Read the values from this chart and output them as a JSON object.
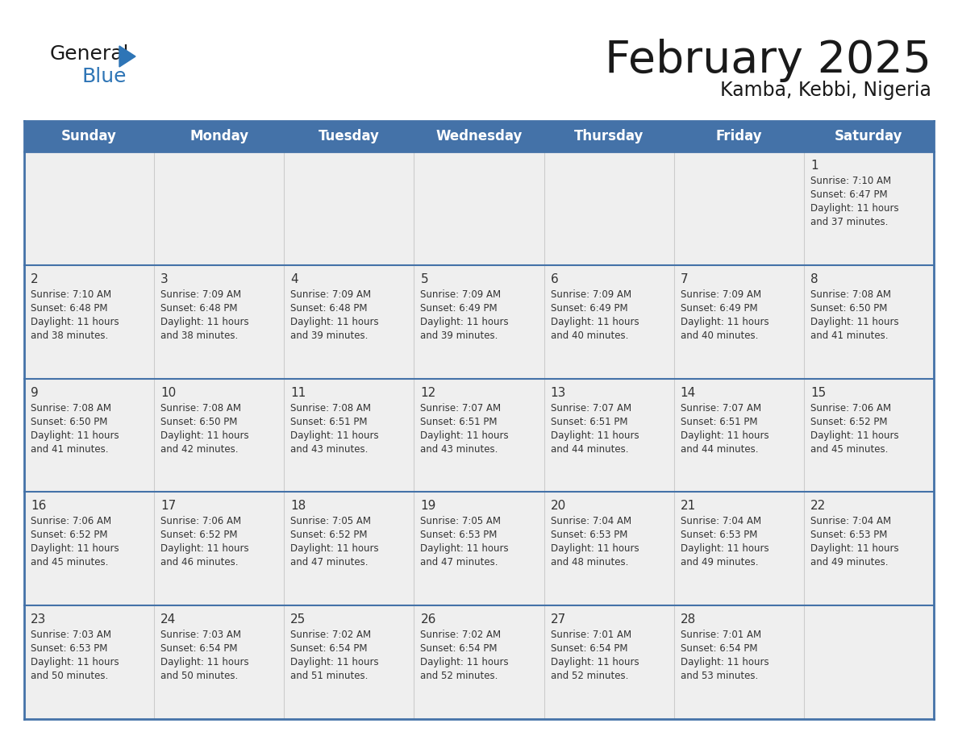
{
  "title": "February 2025",
  "subtitle": "Kamba, Kebbi, Nigeria",
  "header_bg_color": "#4472a8",
  "header_text_color": "#ffffff",
  "cell_bg_color": "#efefef",
  "border_color": "#4472a8",
  "day_text_color": "#333333",
  "info_text_color": "#333333",
  "days_of_week": [
    "Sunday",
    "Monday",
    "Tuesday",
    "Wednesday",
    "Thursday",
    "Friday",
    "Saturday"
  ],
  "logo_general_color": "#1a1a1a",
  "logo_blue_color": "#2e75b6",
  "logo_triangle_color": "#2e75b6",
  "calendar_data": [
    [
      null,
      null,
      null,
      null,
      null,
      null,
      {
        "day": 1,
        "sunrise": "7:10 AM",
        "sunset": "6:47 PM",
        "daylight": "11 hours and 37 minutes."
      }
    ],
    [
      {
        "day": 2,
        "sunrise": "7:10 AM",
        "sunset": "6:48 PM",
        "daylight": "11 hours and 38 minutes."
      },
      {
        "day": 3,
        "sunrise": "7:09 AM",
        "sunset": "6:48 PM",
        "daylight": "11 hours and 38 minutes."
      },
      {
        "day": 4,
        "sunrise": "7:09 AM",
        "sunset": "6:48 PM",
        "daylight": "11 hours and 39 minutes."
      },
      {
        "day": 5,
        "sunrise": "7:09 AM",
        "sunset": "6:49 PM",
        "daylight": "11 hours and 39 minutes."
      },
      {
        "day": 6,
        "sunrise": "7:09 AM",
        "sunset": "6:49 PM",
        "daylight": "11 hours and 40 minutes."
      },
      {
        "day": 7,
        "sunrise": "7:09 AM",
        "sunset": "6:49 PM",
        "daylight": "11 hours and 40 minutes."
      },
      {
        "day": 8,
        "sunrise": "7:08 AM",
        "sunset": "6:50 PM",
        "daylight": "11 hours and 41 minutes."
      }
    ],
    [
      {
        "day": 9,
        "sunrise": "7:08 AM",
        "sunset": "6:50 PM",
        "daylight": "11 hours and 41 minutes."
      },
      {
        "day": 10,
        "sunrise": "7:08 AM",
        "sunset": "6:50 PM",
        "daylight": "11 hours and 42 minutes."
      },
      {
        "day": 11,
        "sunrise": "7:08 AM",
        "sunset": "6:51 PM",
        "daylight": "11 hours and 43 minutes."
      },
      {
        "day": 12,
        "sunrise": "7:07 AM",
        "sunset": "6:51 PM",
        "daylight": "11 hours and 43 minutes."
      },
      {
        "day": 13,
        "sunrise": "7:07 AM",
        "sunset": "6:51 PM",
        "daylight": "11 hours and 44 minutes."
      },
      {
        "day": 14,
        "sunrise": "7:07 AM",
        "sunset": "6:51 PM",
        "daylight": "11 hours and 44 minutes."
      },
      {
        "day": 15,
        "sunrise": "7:06 AM",
        "sunset": "6:52 PM",
        "daylight": "11 hours and 45 minutes."
      }
    ],
    [
      {
        "day": 16,
        "sunrise": "7:06 AM",
        "sunset": "6:52 PM",
        "daylight": "11 hours and 45 minutes."
      },
      {
        "day": 17,
        "sunrise": "7:06 AM",
        "sunset": "6:52 PM",
        "daylight": "11 hours and 46 minutes."
      },
      {
        "day": 18,
        "sunrise": "7:05 AM",
        "sunset": "6:52 PM",
        "daylight": "11 hours and 47 minutes."
      },
      {
        "day": 19,
        "sunrise": "7:05 AM",
        "sunset": "6:53 PM",
        "daylight": "11 hours and 47 minutes."
      },
      {
        "day": 20,
        "sunrise": "7:04 AM",
        "sunset": "6:53 PM",
        "daylight": "11 hours and 48 minutes."
      },
      {
        "day": 21,
        "sunrise": "7:04 AM",
        "sunset": "6:53 PM",
        "daylight": "11 hours and 49 minutes."
      },
      {
        "day": 22,
        "sunrise": "7:04 AM",
        "sunset": "6:53 PM",
        "daylight": "11 hours and 49 minutes."
      }
    ],
    [
      {
        "day": 23,
        "sunrise": "7:03 AM",
        "sunset": "6:53 PM",
        "daylight": "11 hours and 50 minutes."
      },
      {
        "day": 24,
        "sunrise": "7:03 AM",
        "sunset": "6:54 PM",
        "daylight": "11 hours and 50 minutes."
      },
      {
        "day": 25,
        "sunrise": "7:02 AM",
        "sunset": "6:54 PM",
        "daylight": "11 hours and 51 minutes."
      },
      {
        "day": 26,
        "sunrise": "7:02 AM",
        "sunset": "6:54 PM",
        "daylight": "11 hours and 52 minutes."
      },
      {
        "day": 27,
        "sunrise": "7:01 AM",
        "sunset": "6:54 PM",
        "daylight": "11 hours and 52 minutes."
      },
      {
        "day": 28,
        "sunrise": "7:01 AM",
        "sunset": "6:54 PM",
        "daylight": "11 hours and 53 minutes."
      },
      null
    ]
  ]
}
